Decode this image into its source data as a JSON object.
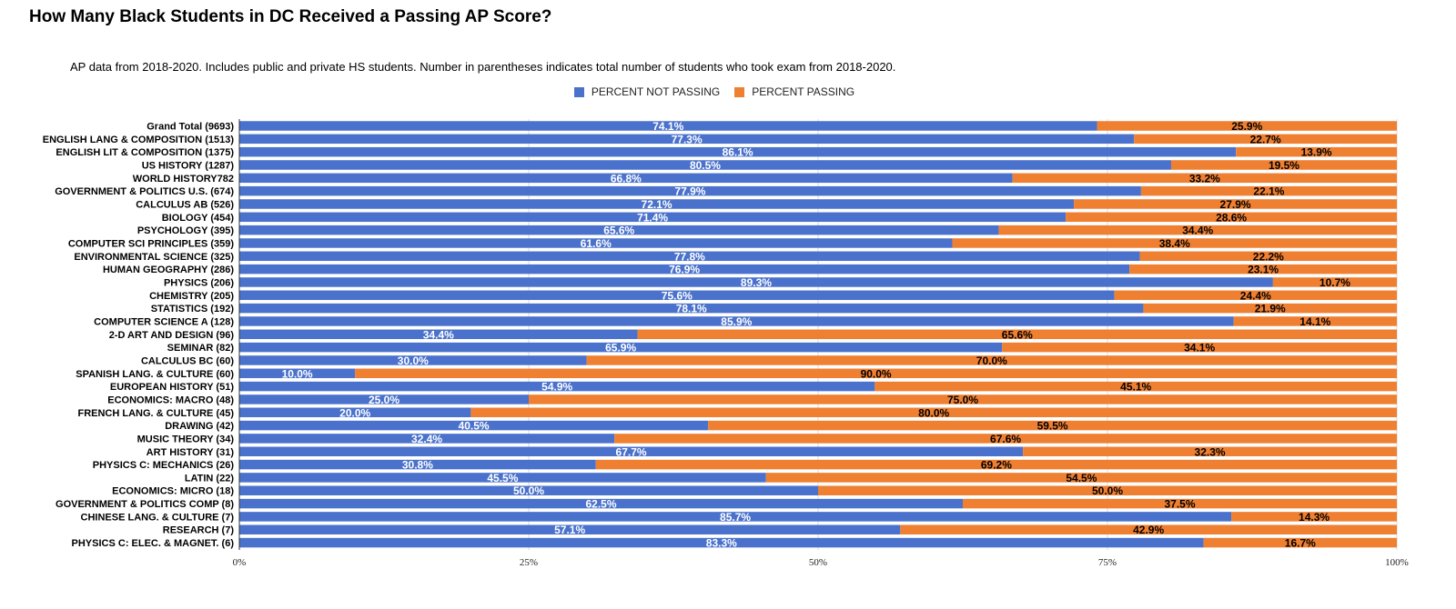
{
  "chart_data": {
    "type": "bar",
    "orientation": "horizontal",
    "stacked": true,
    "title": "How Many Black Students in DC Received a Passing AP Score?",
    "subtitle": "AP data from 2018-2020.  Includes public and private HS students. Number in parentheses indicates total number of students who took exam from 2018-2020.",
    "legend_position": "top",
    "grid": true,
    "xlim": [
      0,
      100
    ],
    "xticks": [
      "0%",
      "25%",
      "50%",
      "75%",
      "100%"
    ],
    "colors": {
      "not_passing": "#4a72cc",
      "passing": "#ef7f31"
    },
    "categories": [
      "Grand Total (9693)",
      "ENGLISH LANG & COMPOSITION (1513)",
      "ENGLISH LIT & COMPOSITION (1375)",
      "US HISTORY (1287)",
      "WORLD HISTORY782",
      "GOVERNMENT & POLITICS U.S. (674)",
      "CALCULUS AB (526)",
      "BIOLOGY (454)",
      "PSYCHOLOGY (395)",
      "COMPUTER SCI PRINCIPLES (359)",
      "ENVIRONMENTAL  SCIENCE (325)",
      "HUMAN GEOGRAPHY (286)",
      "PHYSICS (206)",
      "CHEMISTRY (205)",
      "STATISTICS (192)",
      "COMPUTER  SCIENCE A (128)",
      "2-D ART AND DESIGN (96)",
      "SEMINAR (82)",
      "CALCULUS BC (60)",
      "SPANISH LANG. & CULTURE (60)",
      "EUROPEAN  HISTORY (51)",
      "ECONOMICS:  MACRO (48)",
      "FRENCH LANG. & CULTURE (45)",
      "DRAWING (42)",
      "MUSIC THEORY (34)",
      "ART HISTORY (31)",
      "PHYSICS C: MECHANICS (26)",
      "LATIN (22)",
      "ECONOMICS:  MICRO (18)",
      "GOVERNMENT & POLITICS COMP (8)",
      "CHINESE LANG.  & CULTURE (7)",
      "RESEARCH (7)",
      "PHYSICS C: ELEC. & MAGNET. (6)"
    ],
    "series": [
      {
        "name": "PERCENT NOT PASSING",
        "values": [
          74.1,
          77.3,
          86.1,
          80.5,
          66.8,
          77.9,
          72.1,
          71.4,
          65.6,
          61.6,
          77.8,
          76.9,
          89.3,
          75.6,
          78.1,
          85.9,
          34.4,
          65.9,
          30.0,
          10.0,
          54.9,
          25.0,
          20.0,
          40.5,
          32.4,
          67.7,
          30.8,
          45.5,
          50.0,
          62.5,
          85.7,
          57.1,
          83.3
        ],
        "labels": [
          "74.1%",
          "77.3%",
          "86.1%",
          "80.5%",
          "66.8%",
          "77.9%",
          "72.1%",
          "71.4%",
          "65.6%",
          "61.6%",
          "77.8%",
          "76.9%",
          "89.3%",
          "75.6%",
          "78.1%",
          "85.9%",
          "34.4%",
          "65.9%",
          "30.0%",
          "10.0%",
          "54.9%",
          "25.0%",
          "20.0%",
          "40.5%",
          "32.4%",
          "67.7%",
          "30.8%",
          "45.5%",
          "50.0%",
          "62.5%",
          "85.7%",
          "57.1%",
          "83.3%"
        ]
      },
      {
        "name": "PERCENT PASSING",
        "values": [
          25.9,
          22.7,
          13.9,
          19.5,
          33.2,
          22.1,
          27.9,
          28.6,
          34.4,
          38.4,
          22.2,
          23.1,
          10.7,
          24.4,
          21.9,
          14.1,
          65.6,
          34.1,
          70.0,
          90.0,
          45.1,
          75.0,
          80.0,
          59.5,
          67.6,
          32.3,
          69.2,
          54.5,
          50.0,
          37.5,
          14.3,
          42.9,
          16.7
        ],
        "labels": [
          "25.9%",
          "22.7%",
          "13.9%",
          "19.5%",
          "33.2%",
          "22.1%",
          "27.9%",
          "28.6%",
          "34.4%",
          "38.4%",
          "22.2%",
          "23.1%",
          "10.7%",
          "24.4%",
          "21.9%",
          "14.1%",
          "65.6%",
          "34.1%",
          "70.0%",
          "90.0%",
          "45.1%",
          "75.0%",
          "80.0%",
          "59.5%",
          "67.6%",
          "32.3%",
          "69.2%",
          "54.5%",
          "50.0%",
          "37.5%",
          "14.3%",
          "42.9%",
          "16.7%"
        ]
      }
    ]
  }
}
